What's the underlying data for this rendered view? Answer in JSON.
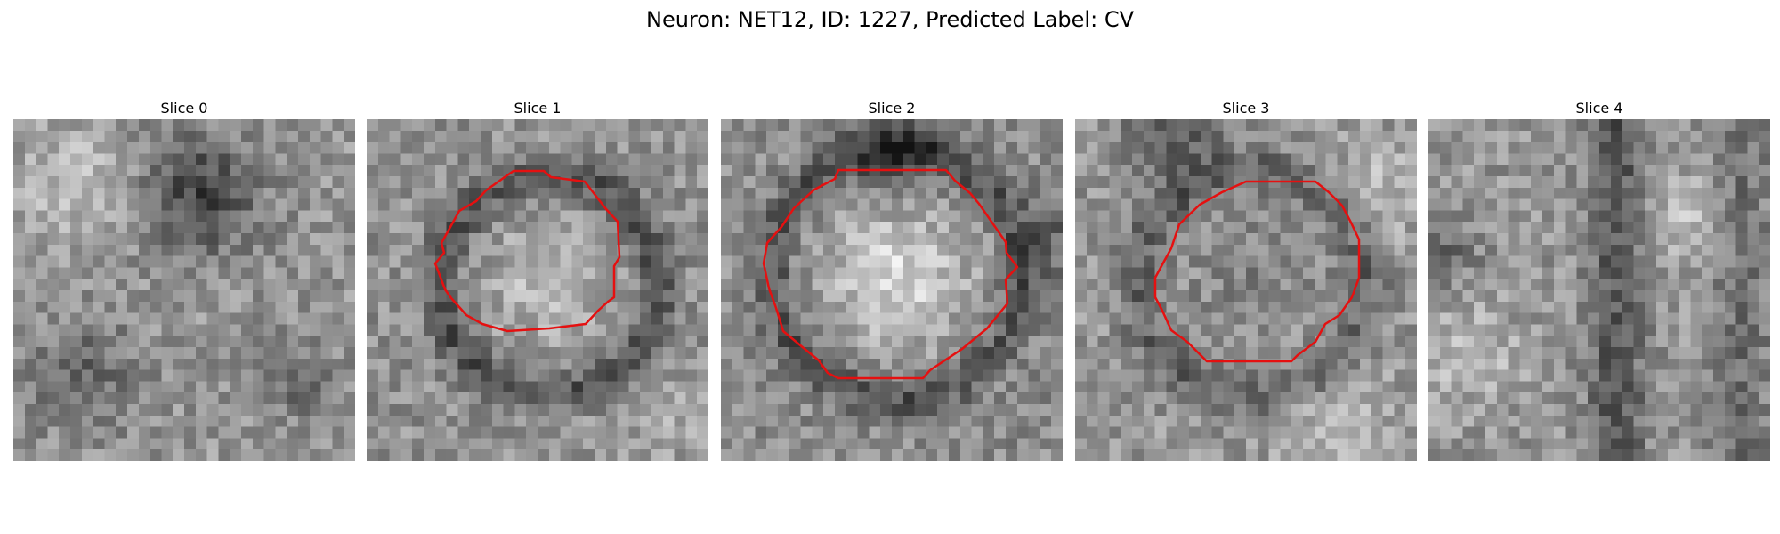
{
  "figure": {
    "title": "Neuron: NET12, ID: 1227, Predicted Label: CV"
  },
  "slices": [
    {
      "title": "Slice 0",
      "has_outline": false
    },
    {
      "title": "Slice 1",
      "has_outline": true
    },
    {
      "title": "Slice 2",
      "has_outline": true
    },
    {
      "title": "Slice 3",
      "has_outline": true
    },
    {
      "title": "Slice 4",
      "has_outline": false
    }
  ],
  "colors": {
    "outline": "#e51010",
    "background": "#ffffff"
  }
}
